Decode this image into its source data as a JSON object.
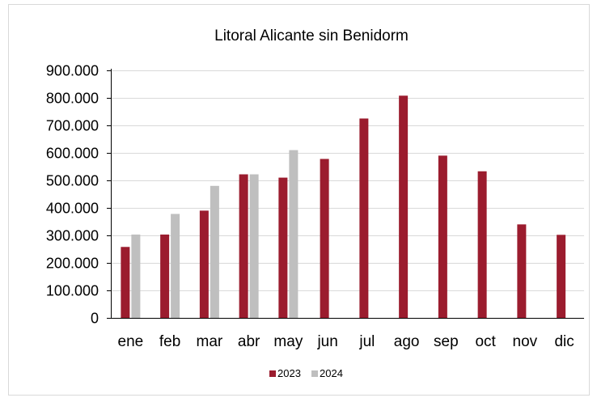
{
  "chart_data": {
    "type": "bar",
    "title": "Litoral Alicante sin Benidorm",
    "xlabel": "",
    "ylabel": "",
    "categories": [
      "ene",
      "feb",
      "mar",
      "abr",
      "may",
      "jun",
      "jul",
      "ago",
      "sep",
      "oct",
      "nov",
      "dic"
    ],
    "series": [
      {
        "name": "2023",
        "color": "#9b1c2e",
        "values": [
          258000,
          303000,
          390000,
          522000,
          510000,
          578000,
          725000,
          808000,
          590000,
          533000,
          340000,
          302000
        ]
      },
      {
        "name": "2024",
        "color": "#bfbfbf",
        "values": [
          303000,
          378000,
          480000,
          522000,
          610000,
          null,
          null,
          null,
          null,
          null,
          null,
          null
        ]
      }
    ],
    "ylim": [
      0,
      900000
    ],
    "yticks": [
      0,
      100000,
      200000,
      300000,
      400000,
      500000,
      600000,
      700000,
      800000,
      900000
    ],
    "ytick_labels": [
      "0",
      "100.000",
      "200.000",
      "300.000",
      "400.000",
      "500.000",
      "600.000",
      "700.000",
      "800.000",
      "900.000"
    ],
    "grid": true,
    "legend_position": "bottom"
  }
}
